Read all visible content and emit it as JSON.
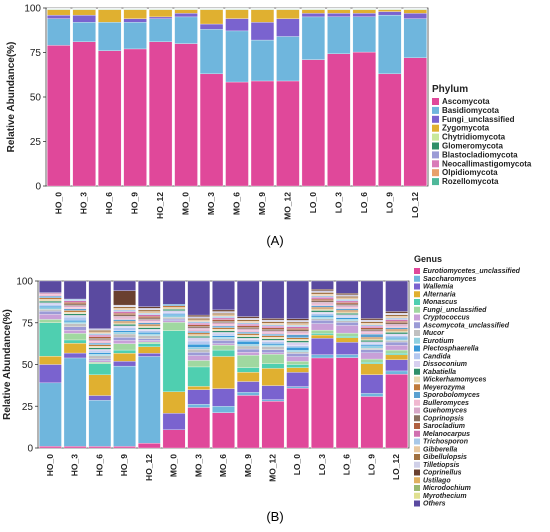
{
  "panel_labels": [
    "(A)",
    "(B)"
  ],
  "chart_data": [
    {
      "type": "bar",
      "stacked": true,
      "ylabel": "Relative Abundance(%)",
      "ylim": [
        0,
        100
      ],
      "yticks": [
        "0",
        "25",
        "50",
        "75",
        "100"
      ],
      "categories": [
        "HO_0",
        "HO_3",
        "HO_6",
        "HO_9",
        "HO_12",
        "MO_0",
        "MO_3",
        "MO_6",
        "MO_9",
        "MO_12",
        "LO_0",
        "LO_3",
        "LO_6",
        "LO_9",
        "LO_12"
      ],
      "legend_title": "Phylum",
      "legend_position": "right",
      "series": [
        {
          "name": "Ascomycota",
          "color": "#e0489a",
          "values": [
            79,
            81,
            76,
            77,
            81,
            80,
            63,
            59,
            59,
            59,
            71,
            75,
            76,
            63,
            72
          ]
        },
        {
          "name": "Basidiomycota",
          "color": "#6fb6dd",
          "values": [
            15,
            11,
            16,
            15,
            13,
            15,
            25,
            29,
            23,
            25,
            24,
            21,
            20,
            33,
            22
          ]
        },
        {
          "name": "Fungi_unclassified",
          "color": "#7a63cf",
          "values": [
            2,
            4,
            0,
            2,
            1,
            2,
            3,
            7,
            10,
            10,
            2,
            2,
            2,
            2,
            3
          ]
        },
        {
          "name": "Zygomycota",
          "color": "#e0b030",
          "values": [
            3,
            3,
            7,
            5,
            4,
            2,
            8,
            5,
            7,
            5,
            2,
            2,
            2,
            1,
            2
          ]
        },
        {
          "name": "Chytridiomycota",
          "color": "#c9e89a",
          "values": [
            0.3,
            0.3,
            0.3,
            0.3,
            0.3,
            0.3,
            0.3,
            0.3,
            0.3,
            0.3,
            0.3,
            0.3,
            0.3,
            0.3,
            0.3
          ]
        },
        {
          "name": "Glomeromycota",
          "color": "#2f8f6a",
          "values": [
            0.2,
            0.2,
            0.2,
            0.2,
            0.2,
            0.2,
            0.2,
            0.2,
            0.2,
            0.2,
            0.2,
            0.2,
            0.2,
            0.2,
            0.2
          ]
        },
        {
          "name": "Blastocladiomycota",
          "color": "#9b9bd6",
          "values": [
            0.2,
            0.2,
            0.2,
            0.2,
            0.2,
            0.2,
            0.2,
            0.2,
            0.2,
            0.2,
            0.2,
            0.2,
            0.2,
            0.2,
            0.2
          ]
        },
        {
          "name": "Neocallimastigomycota",
          "color": "#d97bb8",
          "values": [
            0.1,
            0.1,
            0.1,
            0.1,
            0.1,
            0.1,
            0.1,
            0.1,
            0.1,
            0.1,
            0.1,
            0.1,
            0.1,
            0.1,
            0.1
          ]
        },
        {
          "name": "Olpidiomycota",
          "color": "#e8a06a",
          "values": [
            0.1,
            0.1,
            0.1,
            0.1,
            0.1,
            0.1,
            0.1,
            0.1,
            0.1,
            0.1,
            0.1,
            0.1,
            0.1,
            0.1,
            0.1
          ]
        },
        {
          "name": "Rozellomycota",
          "color": "#4fb89a",
          "values": [
            0.1,
            0.1,
            0.1,
            0.1,
            0.1,
            0.1,
            0.1,
            0.1,
            0.1,
            0.1,
            0.1,
            0.1,
            0.1,
            0.1,
            0.1
          ]
        }
      ]
    },
    {
      "type": "bar",
      "stacked": true,
      "ylabel": "Relative Abundance(%)",
      "ylim": [
        0,
        100
      ],
      "yticks": [
        "0",
        "25",
        "50",
        "75",
        "100"
      ],
      "categories": [
        "HO_0",
        "HO_3",
        "HO_6",
        "HO_9",
        "HO_12",
        "MO_0",
        "MO_3",
        "MO_6",
        "MO_9",
        "MO_12",
        "LO_0",
        "LO_3",
        "LO_6",
        "LO_9",
        "LO_12"
      ],
      "legend_title": "Genus",
      "legend_position": "right",
      "series": [
        {
          "name": "Eurotiomycetes_unclassified",
          "color": "#e0489a",
          "values": [
            1,
            1,
            1,
            1,
            3,
            11,
            25,
            22,
            34,
            30,
            38,
            55,
            59,
            33,
            46
          ]
        },
        {
          "name": "Saccharomyces",
          "color": "#6fb6dd",
          "values": [
            38,
            54,
            29,
            50,
            54,
            0,
            2,
            4,
            2,
            1,
            1,
            2,
            2,
            2,
            2
          ]
        },
        {
          "name": "Wallemia",
          "color": "#7a63cf",
          "values": [
            11,
            3,
            3,
            3,
            2,
            10,
            9,
            11,
            7,
            9,
            9,
            10,
            8,
            12,
            7
          ]
        },
        {
          "name": "Alternaria",
          "color": "#e0b030",
          "values": [
            5,
            6,
            13,
            5,
            4,
            13,
            2,
            20,
            6,
            11,
            3,
            2,
            3,
            7,
            3
          ]
        },
        {
          "name": "Monascus",
          "color": "#4fcfb0",
          "values": [
            20,
            2,
            7,
            2,
            2,
            37,
            12,
            4,
            3,
            3,
            2,
            1,
            1,
            1,
            1
          ]
        },
        {
          "name": "Fungi_unclassified",
          "color": "#a0d8a0",
          "values": [
            2,
            4,
            1,
            4,
            1,
            5,
            4,
            3,
            8,
            6,
            2,
            2,
            2,
            2,
            2
          ]
        },
        {
          "name": "Cryptococcus",
          "color": "#c8a0d8",
          "values": [
            3,
            2,
            1,
            2,
            1,
            1,
            3,
            1,
            2,
            1,
            3,
            4,
            5,
            4,
            3
          ]
        },
        {
          "name": "Ascomycota_unclassified",
          "color": "#9b9bd6",
          "values": [
            2,
            2,
            1,
            2,
            1,
            1,
            2,
            2,
            2,
            2,
            2,
            2,
            2,
            2,
            2
          ]
        },
        {
          "name": "Mucor",
          "color": "#c0c0c0",
          "values": [
            1,
            2,
            2,
            2,
            2,
            1,
            2,
            1,
            2,
            2,
            1,
            1,
            1,
            1,
            1
          ]
        },
        {
          "name": "Eurotium",
          "color": "#8fd0e0",
          "values": [
            1,
            1,
            1,
            1,
            1,
            1,
            1,
            1,
            1,
            1,
            1,
            1,
            1,
            1,
            1
          ]
        },
        {
          "name": "Plectosphaerella",
          "color": "#3a9ad8",
          "values": [
            1,
            1,
            1,
            1,
            1,
            1,
            2,
            1,
            2,
            1,
            2,
            1,
            1,
            1,
            1
          ]
        },
        {
          "name": "Candida",
          "color": "#b4c8f0",
          "values": [
            1,
            2,
            1,
            2,
            1,
            1,
            2,
            1,
            1,
            1,
            1,
            1,
            1,
            1,
            1
          ]
        },
        {
          "name": "Dissoconium",
          "color": "#d8d0f0",
          "values": [
            1,
            1,
            1,
            1,
            1,
            1,
            2,
            1,
            1,
            1,
            2,
            1,
            1,
            1,
            1
          ]
        },
        {
          "name": "Kabatiella",
          "color": "#2f8f6a",
          "values": [
            1,
            1,
            1,
            1,
            1,
            1,
            1,
            1,
            1,
            1,
            1,
            1,
            1,
            1,
            1
          ]
        },
        {
          "name": "Wickerhamomyces",
          "color": "#e8d8b0",
          "values": [
            1,
            1,
            1,
            1,
            1,
            1,
            1,
            1,
            1,
            1,
            1,
            1,
            1,
            1,
            1
          ]
        },
        {
          "name": "Meyerozyma",
          "color": "#c07a3a",
          "values": [
            1,
            1,
            1,
            1,
            1,
            1,
            1,
            1,
            1,
            1,
            1,
            1,
            1,
            1,
            1
          ]
        },
        {
          "name": "Sporobolomyces",
          "color": "#5aa0d0",
          "values": [
            1,
            1,
            1,
            1,
            1,
            1,
            1,
            1,
            1,
            1,
            2,
            1,
            1,
            2,
            1
          ]
        },
        {
          "name": "Bulleromyces",
          "color": "#f0b8d0",
          "values": [
            1,
            1,
            1,
            1,
            1,
            0,
            1,
            1,
            1,
            1,
            1,
            1,
            1,
            1,
            1
          ]
        },
        {
          "name": "Guehomyces",
          "color": "#d8a8c8",
          "values": [
            1,
            1,
            1,
            1,
            1,
            0,
            1,
            1,
            1,
            1,
            1,
            1,
            1,
            1,
            1
          ]
        },
        {
          "name": "Coprinopsis",
          "color": "#8a7060",
          "values": [
            0,
            1,
            1,
            1,
            1,
            0,
            1,
            1,
            1,
            1,
            1,
            1,
            1,
            1,
            1
          ]
        },
        {
          "name": "Sarocladium",
          "color": "#b06040",
          "values": [
            0,
            1,
            1,
            1,
            1,
            0,
            1,
            1,
            1,
            1,
            1,
            1,
            1,
            1,
            1
          ]
        },
        {
          "name": "Melanocarpus",
          "color": "#d070b0",
          "values": [
            0,
            1,
            1,
            1,
            1,
            0,
            1,
            1,
            1,
            1,
            1,
            1,
            1,
            1,
            1
          ]
        },
        {
          "name": "Trichosporon",
          "color": "#a8c8e8",
          "values": [
            0,
            1,
            1,
            1,
            1,
            0,
            1,
            1,
            1,
            1,
            1,
            1,
            1,
            1,
            1
          ]
        },
        {
          "name": "Gibberella",
          "color": "#e8c8a0",
          "values": [
            0,
            0,
            1,
            1,
            1,
            0,
            1,
            1,
            1,
            1,
            1,
            1,
            1,
            1,
            1
          ]
        },
        {
          "name": "Gibellulopsis",
          "color": "#a07040",
          "values": [
            0,
            0,
            1,
            1,
            1,
            0,
            1,
            1,
            1,
            1,
            1,
            1,
            1,
            1,
            1
          ]
        },
        {
          "name": "Tilletiopsis",
          "color": "#d0d0e8",
          "values": [
            0,
            0,
            1,
            1,
            1,
            0,
            1,
            1,
            1,
            1,
            1,
            1,
            1,
            1,
            1
          ]
        },
        {
          "name": "Coprinellus",
          "color": "#6a4030",
          "values": [
            0,
            0,
            0,
            9,
            1,
            0,
            1,
            1,
            1,
            1,
            1,
            1,
            1,
            1,
            1
          ]
        },
        {
          "name": "Ustilago",
          "color": "#e0b060",
          "values": [
            0,
            0,
            0,
            0,
            0,
            0,
            0,
            0,
            0,
            0,
            0,
            0,
            0,
            0,
            0
          ]
        },
        {
          "name": "Microdochium",
          "color": "#9ab870",
          "values": [
            0,
            0,
            0,
            0,
            0,
            0,
            0,
            0,
            0,
            0,
            0,
            0,
            0,
            0,
            0
          ]
        },
        {
          "name": "Myrothecium",
          "color": "#e0e090",
          "values": [
            0,
            0,
            0,
            0,
            0,
            0,
            0,
            0,
            0,
            0,
            0,
            0,
            0,
            0,
            0
          ]
        },
        {
          "name": "Others",
          "color": "#5a4aa0",
          "values": [
            7,
            11,
            30,
            6,
            16,
            14,
            21,
            18,
            23,
            24,
            24,
            5,
            8,
            24,
            19
          ]
        }
      ]
    }
  ]
}
